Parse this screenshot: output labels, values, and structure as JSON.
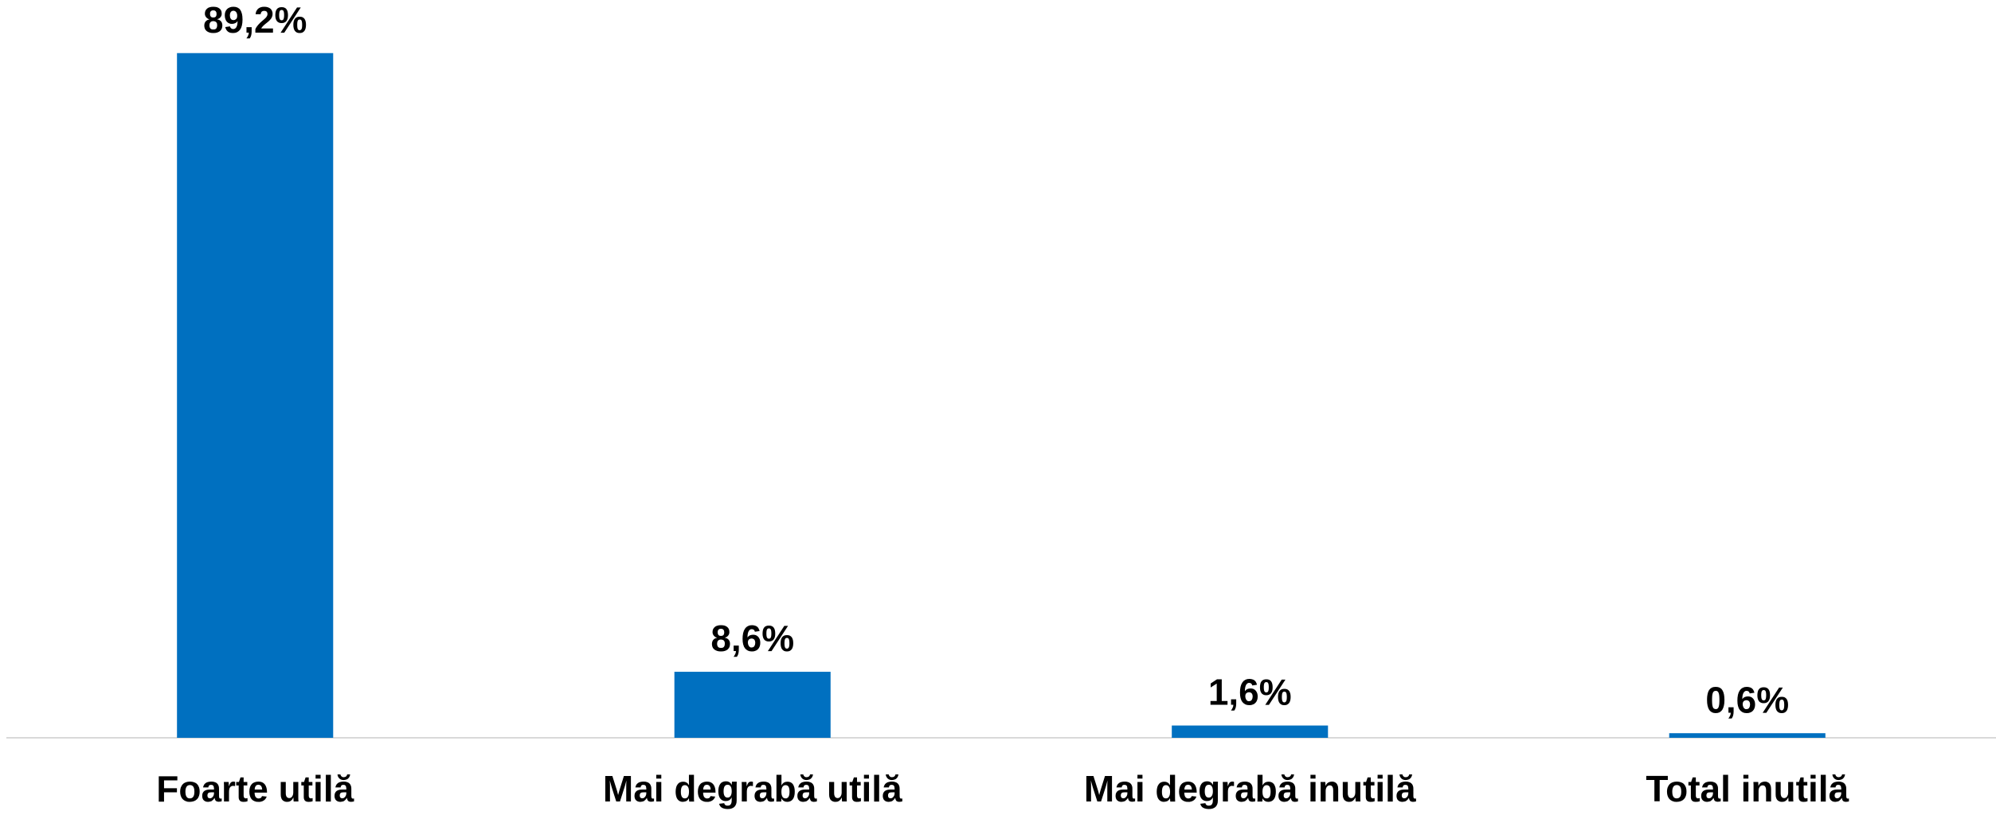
{
  "chart_data": {
    "type": "bar",
    "categories": [
      "Foarte utilă",
      "Mai degrabă utilă",
      "Mai degrabă inutilă",
      "Total inutilă"
    ],
    "values": [
      89.2,
      8.6,
      1.6,
      0.6
    ],
    "value_labels": [
      "89,2%",
      "8,6%",
      "1,6%",
      "0,6%"
    ],
    "color": "#0070c0",
    "ylim": [
      0,
      90
    ]
  }
}
